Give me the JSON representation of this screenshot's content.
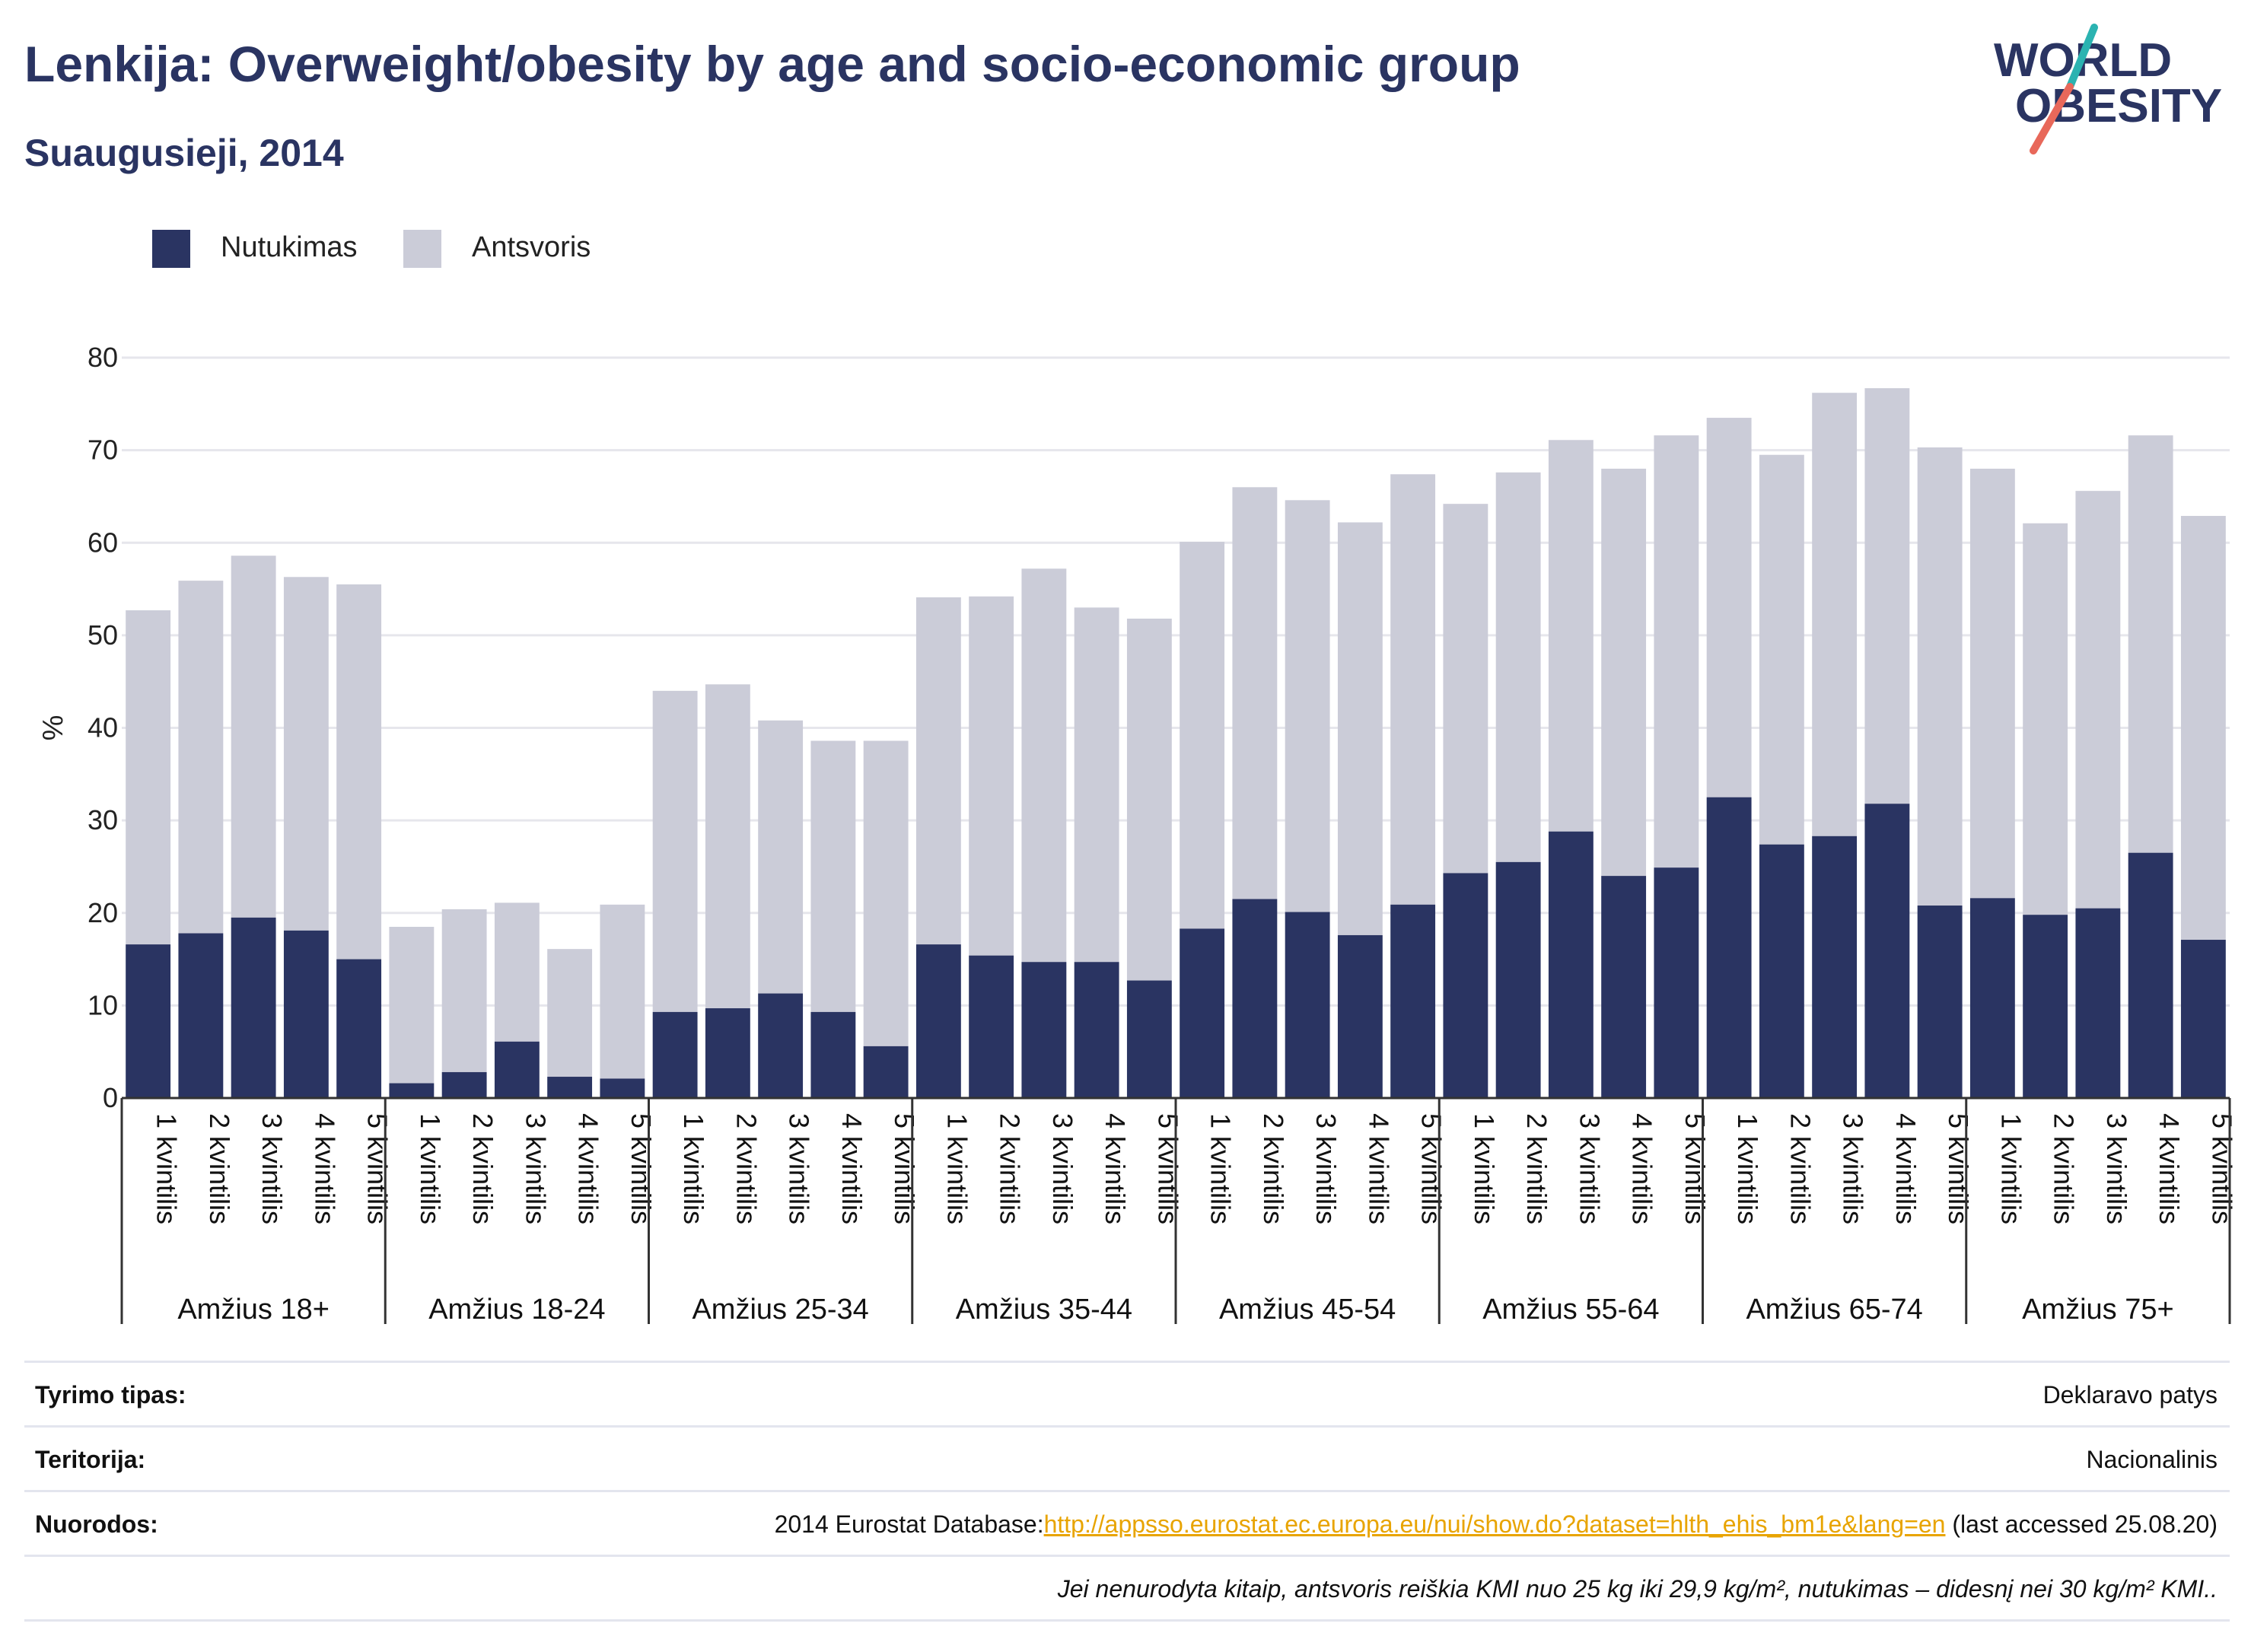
{
  "title": "Lenkija: Overweight/obesity by age and socio-economic group",
  "subtitle": "Suaugusieji, 2014",
  "logo": {
    "line1": "WORLD",
    "line2": "OBESITY"
  },
  "colors": {
    "obesity": "#2a3462",
    "overweight": "#cbccd8",
    "text": "#2a3462",
    "grid": "#e6e6ec",
    "link": "#e8a400"
  },
  "legend": [
    {
      "label": "Nutukimas",
      "color": "#2a3462"
    },
    {
      "label": "Antsvoris",
      "color": "#cbccd8"
    }
  ],
  "chart_data": {
    "type": "bar",
    "stacked": true,
    "ylabel": "%",
    "ylim": [
      0,
      80
    ],
    "yticks": [
      0,
      10,
      20,
      30,
      40,
      50,
      60,
      70,
      80
    ],
    "grid": true,
    "legend_position": "top-left",
    "categories": [
      "1 kvintilis",
      "2 kvintilis",
      "3 kvintilis",
      "4 kvintilis",
      "5 kvintilis"
    ],
    "groups": [
      {
        "name": "Amžius 18+",
        "obesity": [
          16.6,
          17.8,
          19.5,
          18.1,
          15.0
        ],
        "total": [
          52.7,
          55.9,
          58.6,
          56.3,
          55.5
        ]
      },
      {
        "name": "Amžius 18-24",
        "obesity": [
          1.6,
          2.8,
          6.1,
          2.3,
          2.1
        ],
        "total": [
          18.5,
          20.4,
          21.1,
          16.1,
          20.9
        ]
      },
      {
        "name": "Amžius 25-34",
        "obesity": [
          9.3,
          9.7,
          11.3,
          9.3,
          5.6
        ],
        "total": [
          44.0,
          44.7,
          40.8,
          38.6,
          38.6
        ]
      },
      {
        "name": "Amžius 35-44",
        "obesity": [
          16.6,
          15.4,
          14.7,
          14.7,
          12.7
        ],
        "total": [
          54.1,
          54.2,
          57.2,
          53.0,
          51.8
        ]
      },
      {
        "name": "Amžius 45-54",
        "obesity": [
          18.3,
          21.5,
          20.1,
          17.6,
          20.9
        ],
        "total": [
          60.1,
          66.0,
          64.6,
          62.2,
          67.4
        ]
      },
      {
        "name": "Amžius 55-64",
        "obesity": [
          24.3,
          25.5,
          28.8,
          24.0,
          24.9
        ],
        "total": [
          64.2,
          67.6,
          71.1,
          68.0,
          71.6
        ]
      },
      {
        "name": "Amžius 65-74",
        "obesity": [
          32.5,
          27.4,
          28.3,
          31.8,
          20.8
        ],
        "total": [
          73.5,
          69.5,
          76.2,
          76.7,
          70.3
        ]
      },
      {
        "name": "Amžius 75+",
        "obesity": [
          21.6,
          19.8,
          20.5,
          26.5,
          17.1
        ],
        "total": [
          68.0,
          62.1,
          65.6,
          71.6,
          62.9
        ]
      }
    ]
  },
  "meta": [
    {
      "label": "Tyrimo tipas:",
      "value": "Deklaravo patys"
    },
    {
      "label": "Teritorija:",
      "value": "Nacionalinis"
    },
    {
      "label": "Nuorodos:",
      "prefix": "2014 Eurostat Database:",
      "link": "http://appsso.eurostat.ec.europa.eu/nui/show.do?dataset=hlth_ehis_bm1e&lang=en",
      "suffix": " (last accessed 25.08.20)"
    },
    {
      "label": "",
      "value": "Jei nenurodyta kitaip, antsvoris reiškia KMI nuo 25 kg iki 29,9 kg/m², nutukimas – didesnį nei 30 kg/m² KMI.."
    }
  ]
}
